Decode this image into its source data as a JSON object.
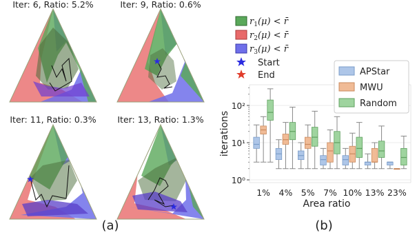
{
  "panel_a": {
    "label": "(a)",
    "subplots": [
      {
        "title": "Iter: 6, Ratio: 5.2%"
      },
      {
        "title": "Iter: 9, Ratio: 0.6%"
      },
      {
        "title": "Iter: 11, Ratio: 0.3%"
      },
      {
        "title": "Iter: 13, Ratio: 1.3%"
      }
    ],
    "legend": [
      {
        "label": "r1(μ) < r̄",
        "color": "#5aa85a"
      },
      {
        "label": "r2(μ) < r̄",
        "color": "#e86a6a"
      },
      {
        "label": "r3(μ) < r̄",
        "color": "#6f6fea"
      },
      {
        "label": "Start",
        "marker": "star",
        "color": "#2b2be0"
      },
      {
        "label": "End",
        "marker": "star",
        "color": "#e03c2b"
      }
    ]
  },
  "panel_b": {
    "label": "(b)"
  },
  "chart_data": {
    "type": "boxplot",
    "xlabel": "Area ratio",
    "ylabel": "iterations",
    "yscale": "log",
    "ylim": [
      1,
      400
    ],
    "ytick_labels": [
      "10⁰",
      "10¹",
      "10²"
    ],
    "categories": [
      "1%",
      "4%",
      "5%",
      "7%",
      "10%",
      "13%",
      "23%"
    ],
    "legend_position": "top-right",
    "series": [
      {
        "name": "APStar",
        "color": "#aec6e8",
        "edge": "#7a9cc8",
        "boxes": [
          {
            "whisker_low": 3,
            "q1": 7,
            "median": 9,
            "q3": 14,
            "whisker_high": 30
          },
          {
            "whisker_low": 2,
            "q1": 3.5,
            "median": 5,
            "q3": 7,
            "whisker_high": 12
          },
          {
            "whisker_low": 2,
            "q1": 3.5,
            "median": 4.5,
            "q3": 6,
            "whisker_high": 10
          },
          {
            "whisker_low": 2,
            "q1": 2.5,
            "median": 3.5,
            "q3": 4.5,
            "whisker_high": 7
          },
          {
            "whisker_low": 2,
            "q1": 2.5,
            "median": 3.5,
            "q3": 4.5,
            "whisker_high": 7
          },
          {
            "whisker_low": 2,
            "q1": 2.5,
            "median": 3,
            "q3": 3,
            "whisker_high": 5
          },
          {
            "whisker_low": 2,
            "q1": 2.5,
            "median": 3,
            "q3": 3,
            "whisker_high": 3
          }
        ]
      },
      {
        "name": "MWU",
        "color": "#f0bb96",
        "edge": "#c98a5e",
        "boxes": [
          {
            "whisker_low": 3,
            "q1": 17,
            "median": 22,
            "q3": 28,
            "whisker_high": 50
          },
          {
            "whisker_low": 2,
            "q1": 9,
            "median": 12,
            "q3": 17,
            "whisker_high": 35
          },
          {
            "whisker_low": 2,
            "q1": 7,
            "median": 9,
            "q3": 14,
            "whisker_high": 30
          },
          {
            "whisker_low": 2,
            "q1": 3,
            "median": 6,
            "q3": 10,
            "whisker_high": 22
          },
          {
            "whisker_low": 2,
            "q1": 3,
            "median": 5,
            "q3": 8,
            "whisker_high": 18
          },
          {
            "whisker_low": 2,
            "q1": 3,
            "median": 3,
            "q3": 7,
            "whisker_high": 10
          },
          {
            "whisker_low": 2,
            "q1": 2,
            "median": 2,
            "q3": 2,
            "whisker_high": 2
          }
        ]
      },
      {
        "name": "Random",
        "color": "#9fd49f",
        "edge": "#5fa05f",
        "boxes": [
          {
            "whisker_low": 3,
            "q1": 40,
            "median": 65,
            "q3": 140,
            "whisker_high": 280
          },
          {
            "whisker_low": 2,
            "q1": 12,
            "median": 20,
            "q3": 35,
            "whisker_high": 90
          },
          {
            "whisker_low": 2,
            "q1": 8,
            "median": 14,
            "q3": 26,
            "whisker_high": 70
          },
          {
            "whisker_low": 2,
            "q1": 5,
            "median": 10,
            "q3": 20,
            "whisker_high": 50
          },
          {
            "whisker_low": 2,
            "q1": 4,
            "median": 7,
            "q3": 14,
            "whisker_high": 35
          },
          {
            "whisker_low": 2,
            "q1": 4,
            "median": 6,
            "q3": 11,
            "whisker_high": 28
          },
          {
            "whisker_low": 2,
            "q1": 2.5,
            "median": 4,
            "q3": 7,
            "whisker_high": 15
          }
        ]
      }
    ]
  }
}
